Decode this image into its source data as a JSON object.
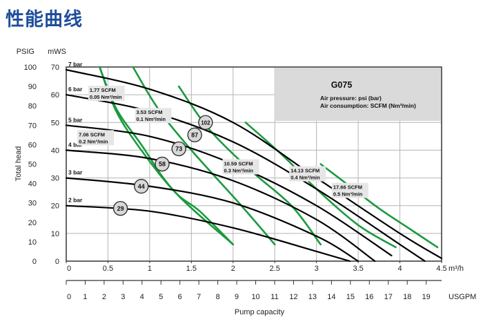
{
  "page": {
    "title": "性能曲线"
  },
  "chart_data": {
    "type": "line",
    "title": "G075",
    "info_lines": [
      "Air pressure: psi (bar)",
      "Air consumption: SCFM (Nm³/min)"
    ],
    "xlabel": "Pump capacity",
    "ylabel": "Total head",
    "x_unit_primary": "m³/h",
    "x_unit_secondary": "USGPM",
    "y_unit_left": "PSIG",
    "y_unit_right": "mWS",
    "xlim": [
      0,
      4.5
    ],
    "ylim_mws": [
      0,
      70
    ],
    "ylim_psig": [
      0,
      100
    ],
    "x_ticks": [
      "0",
      "0.5",
      "1",
      "1.5",
      "2",
      "2.5",
      "3",
      "3.5",
      "4",
      "4.5"
    ],
    "usgpm_ticks": [
      "0",
      "1",
      "2",
      "3",
      "4",
      "5",
      "6",
      "7",
      "8",
      "9",
      "10",
      "11",
      "12",
      "13",
      "14",
      "15",
      "16",
      "17",
      "18",
      "19"
    ],
    "psig_ticks": [
      "0",
      "10",
      "20",
      "30",
      "40",
      "50",
      "60",
      "70",
      "80",
      "90",
      "100"
    ],
    "mws_ticks": [
      "0",
      "10",
      "20",
      "30",
      "40",
      "50",
      "60",
      "70"
    ],
    "pressure_curves": [
      {
        "label": "7 bar",
        "points": [
          [
            0,
            69
          ],
          [
            1,
            62
          ],
          [
            2,
            50
          ],
          [
            3,
            30
          ],
          [
            4,
            10
          ],
          [
            4.5,
            1
          ]
        ]
      },
      {
        "label": "6 bar",
        "points": [
          [
            0,
            60
          ],
          [
            1,
            54
          ],
          [
            2,
            43
          ],
          [
            3,
            26
          ],
          [
            4,
            6
          ],
          [
            4.3,
            0
          ]
        ]
      },
      {
        "label": "5 bar",
        "points": [
          [
            0,
            49
          ],
          [
            1,
            45
          ],
          [
            2,
            35
          ],
          [
            3,
            20
          ],
          [
            3.9,
            2
          ]
        ]
      },
      {
        "label": "4 bar",
        "points": [
          [
            0,
            40
          ],
          [
            1,
            37
          ],
          [
            2,
            29
          ],
          [
            3,
            15
          ],
          [
            3.7,
            0
          ]
        ]
      },
      {
        "label": "3 bar",
        "points": [
          [
            0,
            30
          ],
          [
            1,
            27
          ],
          [
            2,
            21
          ],
          [
            3,
            9
          ],
          [
            3.5,
            0
          ]
        ]
      },
      {
        "label": "2 bar",
        "points": [
          [
            0,
            20
          ],
          [
            1,
            18
          ],
          [
            2,
            12
          ],
          [
            3,
            3.5
          ],
          [
            3.4,
            0
          ]
        ]
      }
    ],
    "air_consumption_curves": [
      {
        "label": [
          "1.77 SCFM",
          "0.05 Nm³/min"
        ],
        "points": [
          [
            0.4,
            70
          ],
          [
            0.6,
            55
          ],
          [
            0.9,
            42
          ],
          [
            1.3,
            25
          ],
          [
            2.0,
            6
          ]
        ]
      },
      {
        "label": [
          "3.53 SCFM",
          "0.1 Nm³/min"
        ],
        "points": [
          [
            0.4,
            70
          ],
          [
            0.6,
            54
          ],
          [
            0.9,
            40
          ],
          [
            1.3,
            25
          ],
          [
            1.6,
            18
          ],
          [
            2.0,
            6
          ]
        ]
      },
      {
        "label": [
          "7.06 SCFM",
          "0.2 Nm³/min"
        ],
        "points": [
          [
            0.8,
            70
          ],
          [
            1.1,
            55
          ],
          [
            1.5,
            40
          ],
          [
            2.1,
            20
          ],
          [
            2.5,
            6
          ]
        ]
      },
      {
        "label": [
          "10.59 SCFM",
          "0.3 Nm³/min"
        ],
        "points": [
          [
            1.35,
            63
          ],
          [
            1.7,
            48
          ],
          [
            2.2,
            33
          ],
          [
            2.7,
            20
          ],
          [
            3.05,
            6
          ]
        ]
      },
      {
        "label": [
          "14.13 SCFM",
          "0.4 Nm³/min"
        ],
        "points": [
          [
            2.15,
            50
          ],
          [
            2.6,
            38
          ],
          [
            3.0,
            26
          ],
          [
            3.5,
            13
          ],
          [
            3.95,
            5
          ]
        ]
      },
      {
        "label": [
          "17.66 SCFM",
          "0.5 Nm³/min"
        ],
        "points": [
          [
            3.05,
            35
          ],
          [
            3.4,
            27
          ],
          [
            3.75,
            19
          ],
          [
            4.1,
            12
          ],
          [
            4.45,
            5
          ]
        ]
      }
    ],
    "markers": [
      {
        "value": "29",
        "x": 0.65,
        "y": 19
      },
      {
        "value": "44",
        "x": 0.9,
        "y": 27
      },
      {
        "value": "58",
        "x": 1.15,
        "y": 35
      },
      {
        "value": "73",
        "x": 1.35,
        "y": 40.5
      },
      {
        "value": "87",
        "x": 1.54,
        "y": 45.5
      },
      {
        "value": "102",
        "x": 1.67,
        "y": 50
      }
    ],
    "label_positions": [
      [
        0.28,
        61
      ],
      [
        0.84,
        53
      ],
      [
        0.15,
        45
      ],
      [
        1.89,
        34.5
      ],
      [
        2.69,
        32
      ],
      [
        3.2,
        26
      ]
    ],
    "colors": {
      "pressure": "#000000",
      "air": "#1a9a3e",
      "grid": "#b4b4b4",
      "legend_box": "#dadada",
      "title": "#1f4e9a",
      "marker_fill": "#d8d8d8"
    },
    "grid": true,
    "legend_placement": "top-right"
  }
}
